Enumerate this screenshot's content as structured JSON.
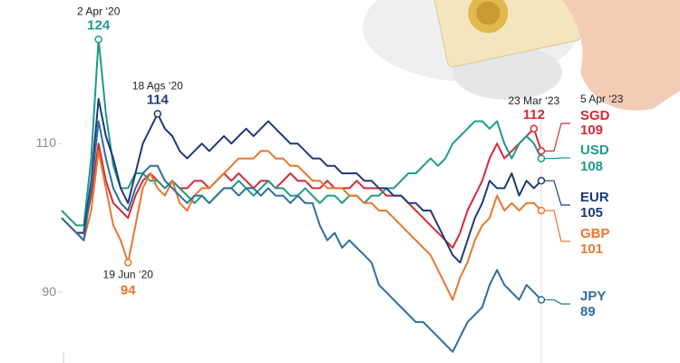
{
  "chart_data": {
    "type": "line",
    "end_date_label": "5 Apr ‘23",
    "ylim": [
      80.5,
      129.3
    ],
    "yticks": [
      90,
      110
    ],
    "series": [
      {
        "name": "SGD",
        "color": "#d62b36",
        "values": [
          100,
          99,
          98,
          98,
          103,
          110,
          105,
          102,
          101,
          100,
          103,
          105,
          106,
          105,
          104,
          105,
          104,
          104,
          105,
          105,
          104,
          105,
          106,
          105,
          106,
          105,
          104,
          105,
          105,
          104,
          105,
          106,
          105,
          105,
          104,
          104,
          105,
          104,
          104,
          104,
          105,
          104,
          104,
          104,
          103,
          103,
          103,
          102,
          101,
          100,
          99,
          98,
          97,
          96,
          98,
          101,
          103,
          105,
          108,
          110,
          108,
          109,
          110,
          111,
          112,
          109
        ],
        "annotations": [
          {
            "label": "23 Mar ‘23",
            "value": 112
          }
        ]
      },
      {
        "name": "USD",
        "color": "#1e9a8a",
        "values": [
          101,
          100,
          99,
          99,
          108,
          124,
          114,
          107,
          104,
          104,
          106,
          106,
          105,
          105,
          104,
          105,
          104,
          103,
          102,
          103,
          102,
          103,
          104,
          104,
          105,
          104,
          103,
          104,
          105,
          104,
          104,
          103,
          103,
          104,
          103,
          102,
          103,
          103,
          102,
          103,
          103,
          102,
          103,
          103,
          104,
          104,
          105,
          106,
          106,
          107,
          108,
          107,
          108,
          110,
          111,
          112,
          113,
          113,
          112,
          113,
          110,
          108,
          110,
          111,
          110,
          108
        ],
        "annotations": [
          {
            "label": "2 Apr ‘20",
            "value": 124
          }
        ]
      },
      {
        "name": "EUR",
        "color": "#1f3a7a",
        "values": [
          100,
          99,
          98,
          98,
          105,
          116,
          111,
          108,
          104,
          102,
          106,
          110,
          112,
          114,
          112,
          111,
          109,
          108,
          109,
          110,
          109,
          110,
          111,
          110,
          111,
          112,
          111,
          112,
          113,
          112,
          111,
          110,
          110,
          109,
          108,
          108,
          107,
          107,
          106,
          106,
          106,
          105,
          105,
          104,
          104,
          103,
          103,
          102,
          102,
          101,
          101,
          99,
          97,
          95,
          94,
          97,
          100,
          102,
          105,
          104,
          104,
          106,
          103,
          105,
          104,
          105
        ],
        "annotations": [
          {
            "label": "18 Ags ‘20",
            "value": 114
          }
        ]
      },
      {
        "name": "GBP",
        "color": "#e8772e",
        "values": [
          100,
          99,
          98,
          97,
          101,
          109,
          104,
          99,
          97,
          94,
          99,
          104,
          106,
          104,
          103,
          105,
          102,
          101,
          103,
          104,
          104,
          105,
          106,
          107,
          108,
          108,
          108,
          109,
          109,
          108,
          108,
          107,
          107,
          106,
          105,
          105,
          104,
          104,
          104,
          103,
          103,
          102,
          102,
          101,
          101,
          100,
          99,
          98,
          97,
          96,
          95,
          93,
          91,
          89,
          92,
          94,
          97,
          99,
          100,
          103,
          101,
          102,
          101,
          102,
          102,
          101
        ],
        "annotations": [
          {
            "label": "19 Jun ‘20",
            "value": 94
          }
        ]
      },
      {
        "name": "JPY",
        "color": "#2f6e9c",
        "values": [
          100,
          99,
          98,
          97,
          104,
          113,
          108,
          104,
          102,
          101,
          104,
          106,
          107,
          107,
          105,
          104,
          103,
          102,
          103,
          103,
          102,
          103,
          104,
          104,
          103,
          104,
          104,
          103,
          104,
          103,
          103,
          102,
          103,
          102,
          102,
          99,
          97,
          98,
          96,
          97,
          96,
          95,
          94,
          91,
          90,
          89,
          88,
          87,
          86,
          86,
          85,
          84,
          83,
          82,
          84,
          86,
          87,
          88,
          91,
          93,
          91,
          90,
          89,
          91,
          90,
          89
        ],
        "annotations": []
      }
    ]
  }
}
